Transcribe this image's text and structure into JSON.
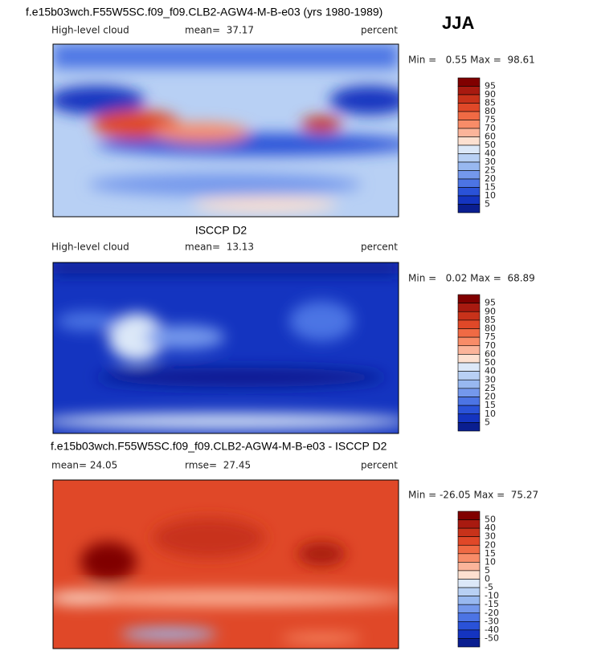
{
  "header": {
    "title": "f.e15b03wch.F55W5SC.f09_f09.CLB2-AGW4-M-B-e03 (yrs 1980-1989)",
    "season": "JJA"
  },
  "panels": [
    {
      "left": "High-level cloud",
      "center": "mean=  37.17",
      "right": "percent",
      "minmax": "Min =   0.55 Max =  98.61",
      "colorbar": {
        "labels": [
          95,
          90,
          85,
          80,
          75,
          70,
          60,
          50,
          40,
          30,
          25,
          20,
          15,
          10,
          5
        ],
        "colors": [
          "#800000",
          "#a81a10",
          "#c8321a",
          "#e04828",
          "#f06a44",
          "#f88c68",
          "#fbb49a",
          "#fde0d0",
          "#dce8f8",
          "#b8d0f4",
          "#98b8f0",
          "#7498ec",
          "#4c74e4",
          "#2a52d8",
          "#1434c0",
          "#0a1e90"
        ]
      }
    },
    {
      "title": "ISCCP D2",
      "left": "High-level cloud",
      "center": "mean=  13.13",
      "right": "percent",
      "minmax": "Min =   0.02 Max =  68.89",
      "colorbar": {
        "labels": [
          95,
          90,
          85,
          80,
          75,
          70,
          60,
          50,
          40,
          30,
          25,
          20,
          15,
          10,
          5
        ],
        "colors": [
          "#800000",
          "#a81a10",
          "#c8321a",
          "#e04828",
          "#f06a44",
          "#f88c68",
          "#fbb49a",
          "#fde0d0",
          "#dce8f8",
          "#b8d0f4",
          "#98b8f0",
          "#7498ec",
          "#4c74e4",
          "#2a52d8",
          "#1434c0",
          "#0a1e90"
        ]
      }
    },
    {
      "title": "f.e15b03wch.F55W5SC.f09_f09.CLB2-AGW4-M-B-e03 - ISCCP D2",
      "left": "mean=  24.05",
      "center": "rmse=  27.45",
      "right": "percent",
      "minmax": "Min = -26.05 Max =  75.27",
      "colorbar": {
        "labels": [
          50,
          40,
          30,
          20,
          15,
          10,
          5,
          0,
          -5,
          -10,
          -15,
          -20,
          -30,
          -40,
          -50
        ],
        "colors": [
          "#800000",
          "#a81a10",
          "#c8321a",
          "#e04828",
          "#f06a44",
          "#f88c68",
          "#fbb49a",
          "#fde0d0",
          "#dce8f8",
          "#b8d0f4",
          "#98b8f0",
          "#7498ec",
          "#4c74e4",
          "#2a52d8",
          "#1434c0",
          "#0a1e90"
        ]
      }
    }
  ]
}
